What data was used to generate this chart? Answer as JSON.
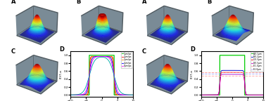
{
  "colormap": "jet",
  "pane_color": "#7a8b96",
  "pane_edge_color": "#505a60",
  "elev": 28,
  "azim": -55,
  "surface_res": 50,
  "panels_left": [
    {
      "label": "A",
      "type": "gaussian",
      "sx": 1.8,
      "sy": 1.8,
      "amp": 1.0
    },
    {
      "label": "B",
      "type": "flattop_dip",
      "r": 2.0,
      "slope": 1.5,
      "amp": 1.0,
      "dip_sx": 0.6,
      "dip_sy": 0.6,
      "dip_amp": 0.55
    },
    {
      "label": "C",
      "type": "gaussian",
      "sx": 2.3,
      "sy": 2.3,
      "amp": 0.92
    }
  ],
  "panels_right": [
    {
      "label": "A",
      "type": "gaussian",
      "sx": 1.8,
      "sy": 1.8,
      "amp": 1.0
    },
    {
      "label": "B",
      "type": "gaussian_tilt",
      "sx": 2.4,
      "sy": 2.0,
      "amp": 1.0,
      "tilt": 0.06
    },
    {
      "label": "C",
      "type": "gaussian",
      "sx": 2.3,
      "sy": 2.0,
      "amp": 0.88
    }
  ],
  "D_left": {
    "label": "D",
    "xlabel": "μm",
    "ylabel": "iT/iT,∞",
    "xlim": [
      -10,
      10
    ],
    "ylim": [
      -0.05,
      1.1
    ],
    "curves": [
      {
        "color": "#00cc00",
        "type": "step",
        "amp": 1.0,
        "edge": 4.0,
        "sharpness": 30
      },
      {
        "color": "#ff0000",
        "type": "sigmoid",
        "amp": 0.97,
        "edge": 4.0,
        "sharpness": 8
      },
      {
        "color": "#ff8800",
        "type": "sigmoid",
        "amp": 0.97,
        "edge": 4.0,
        "sharpness": 5
      },
      {
        "color": "#0000ff",
        "type": "sigmoid",
        "amp": 0.97,
        "edge": 4.0,
        "sharpness": 3
      },
      {
        "color": "#ff00ff",
        "type": "sigmoid",
        "amp": 0.97,
        "edge": 4.0,
        "sharpness": 2
      },
      {
        "color": "#00aaaa",
        "type": "sigmoid",
        "amp": 0.97,
        "edge": 4.0,
        "sharpness": 1.2
      }
    ],
    "legend": [
      "ref",
      "1μm/px",
      "2μm/px",
      "3μm/px",
      "4μm/px",
      "5μm/px"
    ]
  },
  "D_right": {
    "label": "D",
    "xlabel": "μm",
    "ylabel": "iT/iT,∞",
    "xlim": [
      -10,
      10
    ],
    "ylim": [
      -0.05,
      1.1
    ],
    "curves": [
      {
        "color": "#00cc00",
        "type": "step",
        "amp": 1.0,
        "edge": 4.0,
        "sharpness": 30
      },
      {
        "color": "#0000cc",
        "type": "sigmoid",
        "amp": 0.62,
        "edge": 4.0,
        "sharpness": 8
      },
      {
        "color": "#ff0000",
        "type": "sigmoid",
        "amp": 0.57,
        "edge": 4.0,
        "sharpness": 8
      },
      {
        "color": "#cc00cc",
        "type": "sigmoid",
        "amp": 0.52,
        "edge": 4.0,
        "sharpness": 8
      },
      {
        "color": "#ff9999",
        "type": "flat",
        "level": 0.58
      },
      {
        "color": "#aaaaff",
        "type": "flat",
        "level": 0.53
      },
      {
        "color": "#ffaaaa",
        "type": "flat",
        "level": 0.48
      }
    ],
    "legend": [
      "ref",
      "A:0.1μm",
      "B:0.2μm",
      "C:0.3μm",
      "D:0.5μm",
      "E:1.0μm",
      "F:2.0μm"
    ]
  }
}
